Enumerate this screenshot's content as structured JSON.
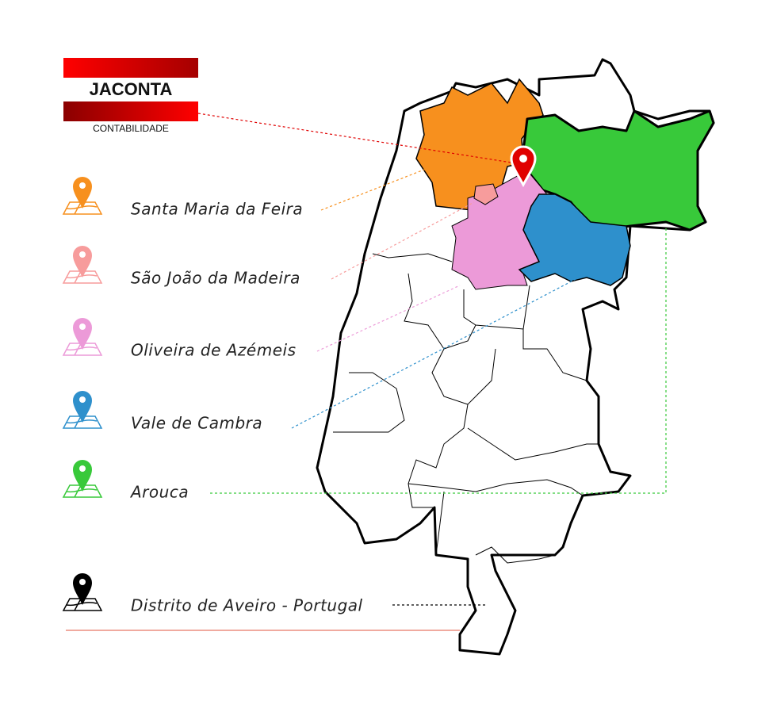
{
  "logo": {
    "name": "JACONTA",
    "tagline": "CONTABILIDADE"
  },
  "legend": [
    {
      "label": "Santa Maria da Feira",
      "color": "#f7901e"
    },
    {
      "label": "São João da Madeira",
      "color": "#f79c9c"
    },
    {
      "label": "Oliveira de Azémeis",
      "color": "#ec9ad8"
    },
    {
      "label": "Vale de Cambra",
      "color": "#2e90cc"
    },
    {
      "label": "Arouca",
      "color": "#38c93a"
    },
    {
      "label": "Distrito de Aveiro - Portugal",
      "color": "#000000"
    }
  ]
}
